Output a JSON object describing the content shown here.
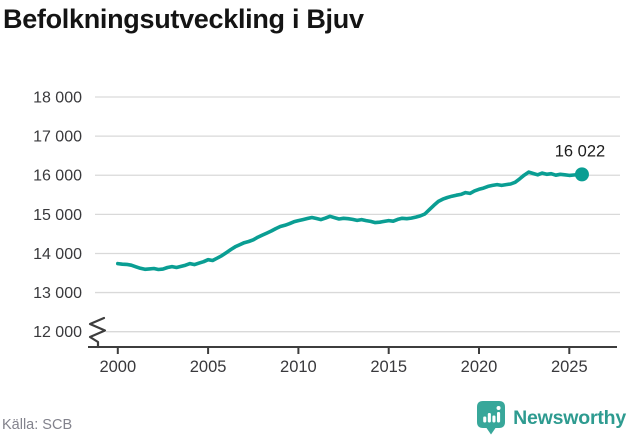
{
  "chart": {
    "title": "Befolkningsutveckling i Bjuv",
    "source": "Källa: SCB",
    "brand": "Newsworthy",
    "colors": {
      "line": "#0a9e93",
      "grid": "#d9d9d9",
      "axis": "#3d3d3d",
      "tick_text": "#39393c",
      "title_text": "#141414",
      "end_label_text": "#1c1c1c",
      "source_text": "#82828c",
      "brand_icon": "#38a79a",
      "brand_text": "#2e9b90"
    }
  },
  "chart_data": {
    "type": "line",
    "title": "Befolkningsutveckling i Bjuv",
    "xlabel": "",
    "ylabel": "",
    "x_ticks": [
      2000,
      2005,
      2010,
      2015,
      2020,
      2025
    ],
    "x_tick_labels": [
      "2000",
      "2005",
      "2010",
      "2015",
      "2020",
      "2025"
    ],
    "y_ticks": [
      18000,
      17000,
      16000,
      15000,
      14000,
      13000,
      12000
    ],
    "y_tick_labels": [
      "18 000",
      "17 000",
      "16 000",
      "15 000",
      "14 000",
      "13 000",
      "12 000"
    ],
    "ylim": [
      12000,
      18000
    ],
    "xlim": [
      2000,
      2025.7
    ],
    "axis_break": true,
    "grid": "horizontal",
    "legend": "none",
    "last_point": {
      "x": 2025.7,
      "y": 16022,
      "label": "16 022"
    },
    "series": [
      {
        "name": "Befolkning i Bjuv",
        "points": [
          [
            2000,
            13740
          ],
          [
            2000.25,
            13725
          ],
          [
            2000.5,
            13720
          ],
          [
            2000.75,
            13700
          ],
          [
            2001,
            13660
          ],
          [
            2001.25,
            13620
          ],
          [
            2001.5,
            13595
          ],
          [
            2001.75,
            13605
          ],
          [
            2002,
            13615
          ],
          [
            2002.25,
            13590
          ],
          [
            2002.5,
            13600
          ],
          [
            2002.75,
            13640
          ],
          [
            2003,
            13665
          ],
          [
            2003.25,
            13640
          ],
          [
            2003.5,
            13670
          ],
          [
            2003.75,
            13700
          ],
          [
            2004,
            13740
          ],
          [
            2004.25,
            13715
          ],
          [
            2004.5,
            13755
          ],
          [
            2004.75,
            13790
          ],
          [
            2005,
            13840
          ],
          [
            2005.25,
            13820
          ],
          [
            2005.5,
            13880
          ],
          [
            2005.75,
            13940
          ],
          [
            2006,
            14020
          ],
          [
            2006.25,
            14100
          ],
          [
            2006.5,
            14170
          ],
          [
            2006.75,
            14225
          ],
          [
            2007,
            14275
          ],
          [
            2007.25,
            14305
          ],
          [
            2007.5,
            14350
          ],
          [
            2007.75,
            14415
          ],
          [
            2008,
            14470
          ],
          [
            2008.25,
            14520
          ],
          [
            2008.5,
            14575
          ],
          [
            2008.75,
            14635
          ],
          [
            2009,
            14690
          ],
          [
            2009.25,
            14720
          ],
          [
            2009.5,
            14760
          ],
          [
            2009.75,
            14810
          ],
          [
            2010,
            14840
          ],
          [
            2010.25,
            14865
          ],
          [
            2010.5,
            14895
          ],
          [
            2010.75,
            14920
          ],
          [
            2011,
            14895
          ],
          [
            2011.25,
            14865
          ],
          [
            2011.5,
            14905
          ],
          [
            2011.75,
            14950
          ],
          [
            2012,
            14915
          ],
          [
            2012.25,
            14880
          ],
          [
            2012.5,
            14900
          ],
          [
            2012.75,
            14890
          ],
          [
            2013,
            14870
          ],
          [
            2013.25,
            14845
          ],
          [
            2013.5,
            14865
          ],
          [
            2013.75,
            14840
          ],
          [
            2014,
            14820
          ],
          [
            2014.25,
            14790
          ],
          [
            2014.5,
            14800
          ],
          [
            2014.75,
            14820
          ],
          [
            2015,
            14840
          ],
          [
            2015.25,
            14825
          ],
          [
            2015.5,
            14870
          ],
          [
            2015.75,
            14900
          ],
          [
            2016,
            14890
          ],
          [
            2016.25,
            14905
          ],
          [
            2016.5,
            14930
          ],
          [
            2016.75,
            14960
          ],
          [
            2017,
            15010
          ],
          [
            2017.25,
            15120
          ],
          [
            2017.5,
            15230
          ],
          [
            2017.75,
            15330
          ],
          [
            2018,
            15390
          ],
          [
            2018.25,
            15430
          ],
          [
            2018.5,
            15465
          ],
          [
            2018.75,
            15490
          ],
          [
            2019,
            15510
          ],
          [
            2019.25,
            15555
          ],
          [
            2019.5,
            15535
          ],
          [
            2019.75,
            15600
          ],
          [
            2020,
            15640
          ],
          [
            2020.25,
            15670
          ],
          [
            2020.5,
            15715
          ],
          [
            2020.75,
            15740
          ],
          [
            2021,
            15760
          ],
          [
            2021.25,
            15740
          ],
          [
            2021.5,
            15760
          ],
          [
            2021.75,
            15775
          ],
          [
            2022,
            15820
          ],
          [
            2022.25,
            15905
          ],
          [
            2022.5,
            16000
          ],
          [
            2022.75,
            16080
          ],
          [
            2023,
            16045
          ],
          [
            2023.25,
            16010
          ],
          [
            2023.5,
            16055
          ],
          [
            2023.75,
            16025
          ],
          [
            2024,
            16040
          ],
          [
            2024.25,
            16000
          ],
          [
            2024.5,
            16025
          ],
          [
            2024.75,
            16010
          ],
          [
            2025,
            15995
          ],
          [
            2025.25,
            16005
          ],
          [
            2025.5,
            16015
          ],
          [
            2025.7,
            16022
          ]
        ]
      }
    ]
  }
}
